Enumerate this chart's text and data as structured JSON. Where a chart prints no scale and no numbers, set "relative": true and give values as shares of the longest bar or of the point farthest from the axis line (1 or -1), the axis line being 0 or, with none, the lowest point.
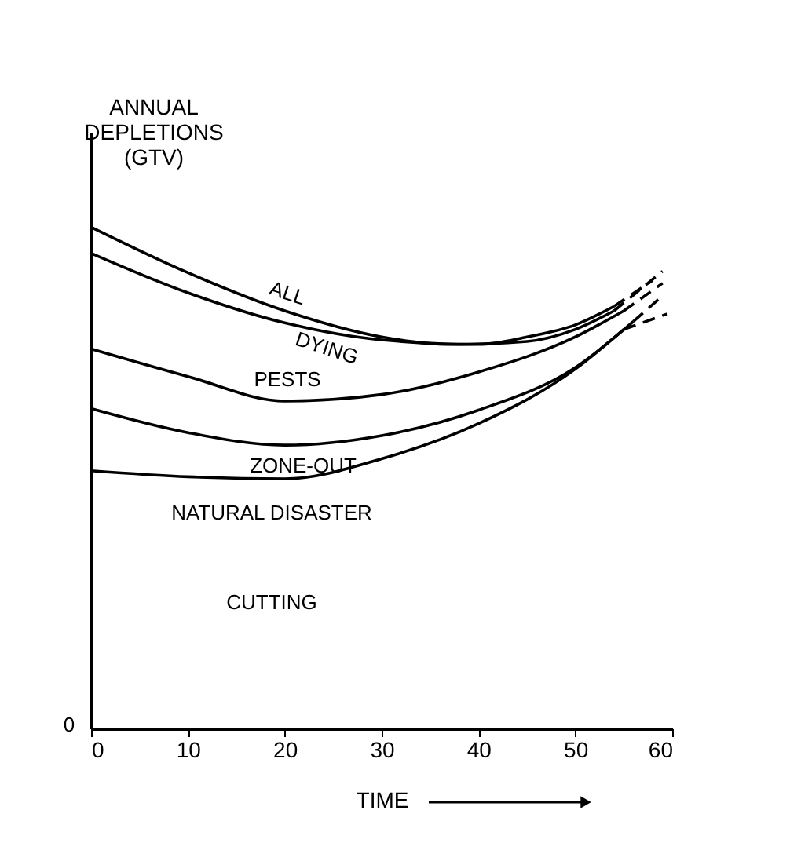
{
  "chart_data": {
    "type": "line",
    "relative": true,
    "ylabel": "ANNUAL DEPLETIONS (GTV)",
    "xlabel": "TIME",
    "xlim": [
      0,
      60
    ],
    "xticks": [
      0,
      10,
      20,
      30,
      40,
      50,
      60
    ],
    "grid": false,
    "marker": "none",
    "series": [
      {
        "color": "#000000",
        "line_style": "solid",
        "x": [
          0,
          10,
          20,
          30,
          37,
          45,
          50,
          54
        ],
        "values": [
          1,
          0.909,
          0.833,
          0.781,
          0.766,
          0.772,
          0.796,
          0.833
        ]
      },
      {
        "color": "#000000",
        "line_style": "dashed",
        "x": [
          54,
          59
        ],
        "values": [
          0.833,
          0.912
        ]
      },
      {
        "color": "#000000",
        "line_style": "solid",
        "x": [
          0,
          10,
          20,
          30,
          40,
          45,
          50,
          54
        ],
        "values": [
          0.948,
          0.869,
          0.809,
          0.775,
          0.766,
          0.781,
          0.805,
          0.842
        ]
      },
      {
        "color": "#000000",
        "line_style": "dashed",
        "x": [
          54,
          58
        ],
        "values": [
          0.842,
          0.894
        ]
      },
      {
        "color": "#000000",
        "line_style": "solid",
        "x": [
          0,
          10,
          20,
          30,
          40,
          50,
          55
        ],
        "values": [
          0.757,
          0.702,
          0.653,
          0.666,
          0.711,
          0.781,
          0.833
        ]
      },
      {
        "color": "#000000",
        "line_style": "dashed",
        "x": [
          55,
          59
        ],
        "values": [
          0.833,
          0.888
        ]
      },
      {
        "color": "#000000",
        "line_style": "solid",
        "x": [
          0,
          10,
          20,
          30,
          40,
          50,
          56
        ],
        "values": [
          0.638,
          0.59,
          0.565,
          0.584,
          0.635,
          0.72,
          0.812
        ]
      },
      {
        "color": "#000000",
        "line_style": "dashed",
        "x": [
          56,
          59
        ],
        "values": [
          0.812,
          0.863
        ]
      },
      {
        "color": "#000000",
        "line_style": "solid",
        "x": [
          0,
          10,
          20,
          30,
          40,
          50,
          55
        ],
        "values": [
          0.514,
          0.502,
          0.498,
          0.538,
          0.608,
          0.717,
          0.796
        ]
      },
      {
        "color": "#000000",
        "line_style": "dashed",
        "x": [
          55,
          59.5
        ],
        "values": [
          0.796,
          0.827
        ]
      }
    ],
    "annotations": [
      "ALL",
      "DYING",
      "PESTS",
      "ZONE-OUT",
      "NATURAL DISASTER",
      "CUTTING",
      "0"
    ]
  }
}
